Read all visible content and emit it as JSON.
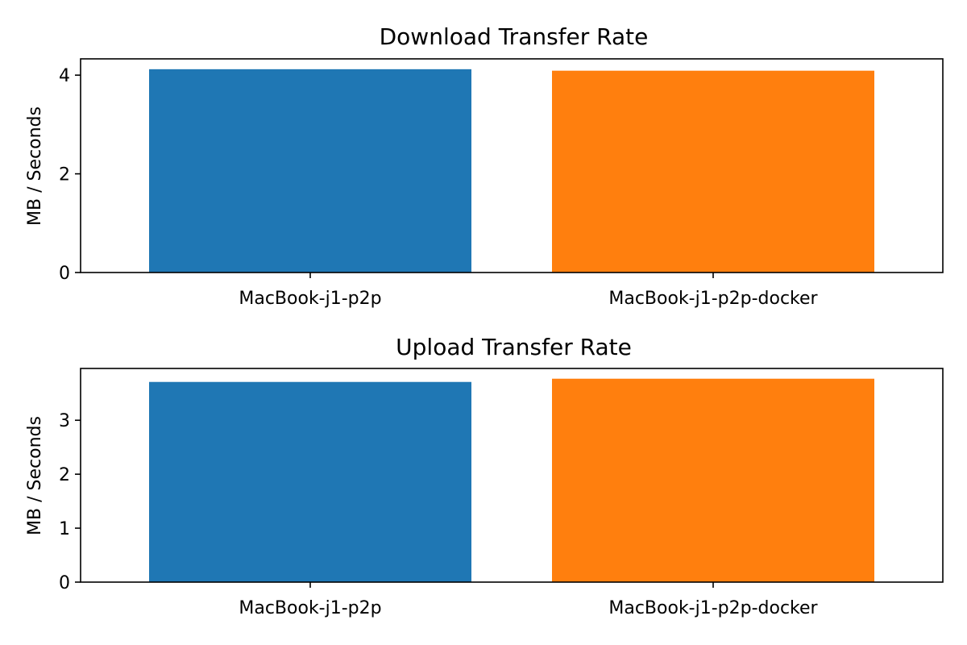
{
  "chart_data": [
    {
      "type": "bar",
      "title": "Download Transfer Rate",
      "xlabel": "",
      "ylabel": "MB / Seconds",
      "categories": [
        "MacBook-j1-p2p",
        "MacBook-j1-p2p-docker"
      ],
      "values": [
        4.12,
        4.09
      ],
      "colors": [
        "#1f77b4",
        "#ff7f0e"
      ],
      "ylim": [
        0,
        4.33
      ],
      "yticks": [
        0,
        2,
        4
      ],
      "grid": false
    },
    {
      "type": "bar",
      "title": "Upload Transfer Rate",
      "xlabel": "",
      "ylabel": "MB / Seconds",
      "categories": [
        "MacBook-j1-p2p",
        "MacBook-j1-p2p-docker"
      ],
      "values": [
        3.71,
        3.77
      ],
      "colors": [
        "#1f77b4",
        "#ff7f0e"
      ],
      "ylim": [
        0,
        3.96
      ],
      "yticks": [
        0,
        1,
        2,
        3
      ],
      "grid": false
    }
  ]
}
